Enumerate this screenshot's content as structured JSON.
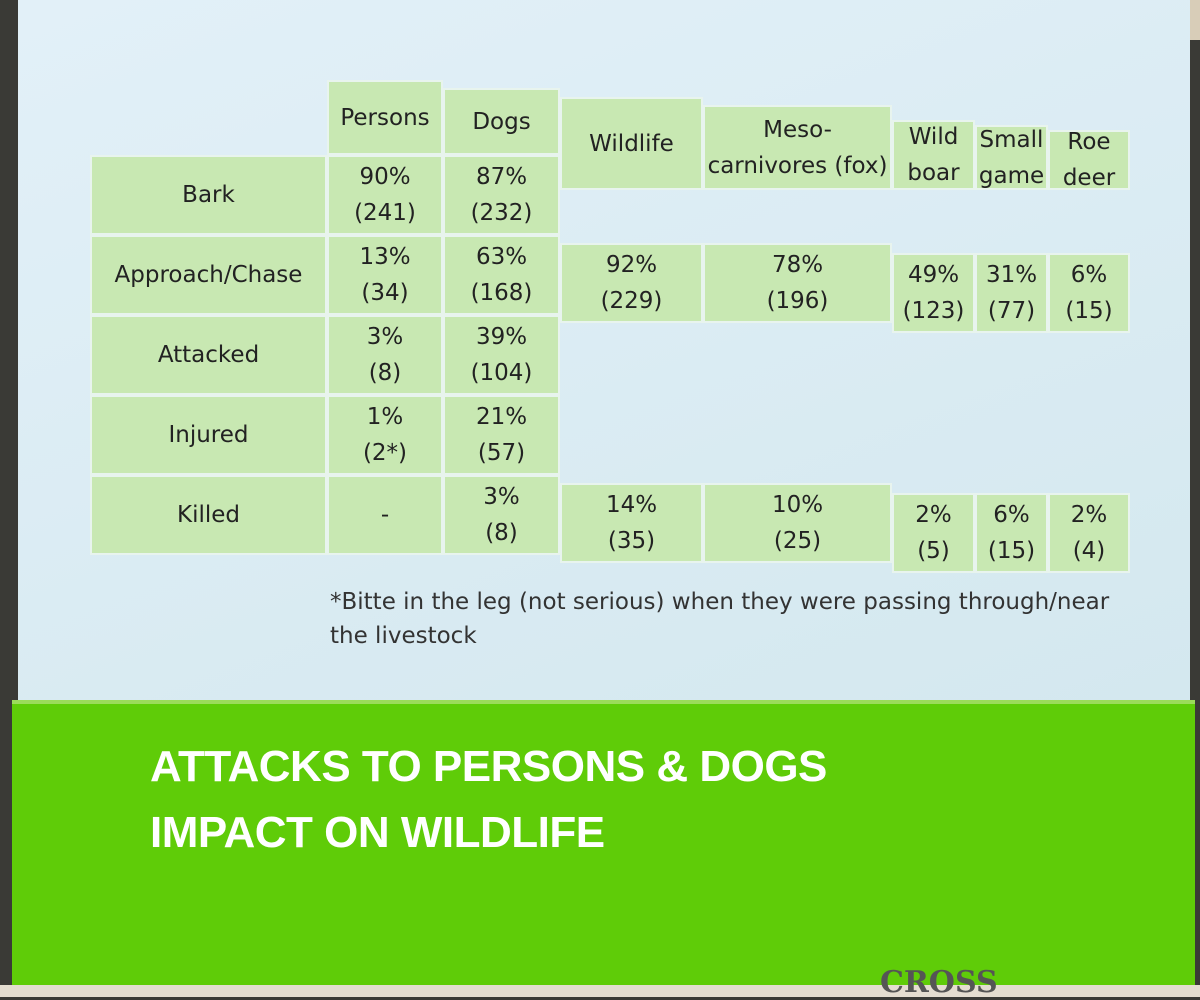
{
  "table": {
    "columns": [
      [
        "Persons"
      ],
      [
        "Dogs"
      ],
      [
        "Wildlife"
      ],
      [
        "Meso-",
        "carnivores (fox)"
      ],
      [
        "Wild",
        "boar"
      ],
      [
        "Small",
        "game"
      ],
      [
        "Roe",
        "deer"
      ]
    ],
    "rows": [
      {
        "label": "Bark",
        "cells": [
          [
            "90%",
            "(241)"
          ],
          [
            "87%",
            "(232)"
          ],
          null,
          null,
          null,
          null,
          null
        ]
      },
      {
        "label": "Approach/Chase",
        "cells": [
          [
            "13%",
            "(34)"
          ],
          [
            "63%",
            "(168)"
          ],
          [
            "92%",
            "(229)"
          ],
          [
            "78%",
            "(196)"
          ],
          [
            "49%",
            "(123)"
          ],
          [
            "31%",
            "(77)"
          ],
          [
            "6%",
            "(15)"
          ]
        ]
      },
      {
        "label": "Attacked",
        "cells": [
          [
            "3%",
            "(8)"
          ],
          [
            "39%",
            "(104)"
          ],
          null,
          null,
          null,
          null,
          null
        ]
      },
      {
        "label": "Injured",
        "cells": [
          [
            "1%",
            "(2*)"
          ],
          [
            "21%",
            "(57)"
          ],
          null,
          null,
          null,
          null,
          null
        ]
      },
      {
        "label": "Killed",
        "cells": [
          [
            "-"
          ],
          [
            "3%",
            "(8)"
          ],
          [
            "14%",
            "(35)"
          ],
          [
            "10%",
            "(25)"
          ],
          [
            "2%",
            "(5)"
          ],
          [
            "6%",
            "(15)"
          ],
          [
            "2%",
            "(4)"
          ]
        ]
      }
    ]
  },
  "footnote": "*Bitte in the leg (not serious) when they were passing through/near the livestock",
  "title": [
    "ATTACKS TO PERSONS & DOGS",
    "IMPACT ON WILDLIFE"
  ],
  "backdrop_text": "CROSS"
}
